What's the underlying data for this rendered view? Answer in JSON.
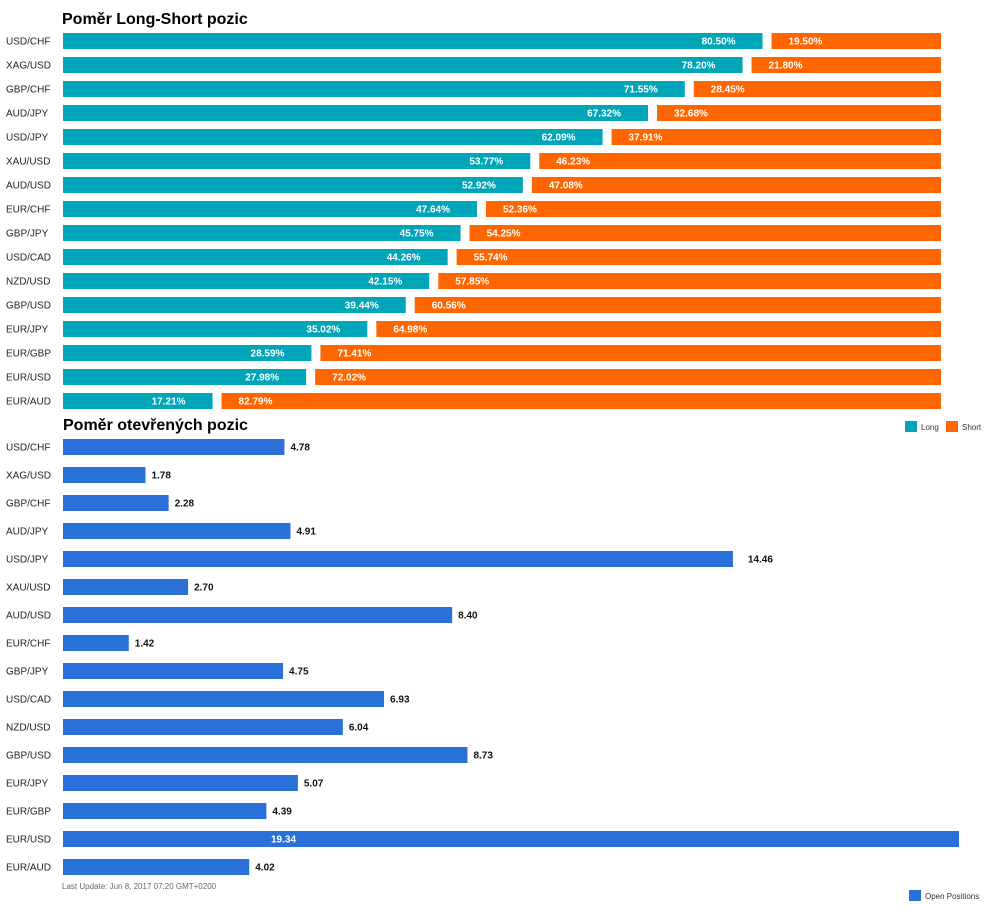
{
  "chart_data": [
    {
      "type": "bar",
      "stacked": true,
      "orientation": "horizontal",
      "title": "Poměr Long-Short pozic",
      "categories": [
        "USD/CHF",
        "XAG/USD",
        "GBP/CHF",
        "AUD/JPY",
        "USD/JPY",
        "XAU/USD",
        "AUD/USD",
        "EUR/CHF",
        "GBP/JPY",
        "USD/CAD",
        "NZD/USD",
        "GBP/USD",
        "EUR/JPY",
        "EUR/GBP",
        "EUR/USD",
        "EUR/AUD"
      ],
      "series": [
        {
          "name": "Long",
          "color": "#00a6b8",
          "values": [
            80.5,
            78.2,
            71.55,
            67.32,
            62.09,
            53.77,
            52.92,
            47.64,
            45.75,
            44.26,
            42.15,
            39.44,
            35.02,
            28.59,
            27.98,
            17.21
          ]
        },
        {
          "name": "Short",
          "color": "#ff6600",
          "values": [
            19.5,
            21.8,
            28.45,
            32.68,
            37.91,
            46.23,
            47.08,
            52.36,
            54.25,
            55.74,
            57.85,
            60.56,
            64.98,
            71.41,
            72.02,
            82.79
          ]
        }
      ],
      "labels": {
        "Long": [
          "80.50%",
          "78.20%",
          "71.55%",
          "67.32%",
          "62.09%",
          "53.77%",
          "52.92%",
          "47.64%",
          "45.75%",
          "44.26%",
          "42.15%",
          "39.44%",
          "35.02%",
          "28.59%",
          "27.98%",
          "17.21%"
        ],
        "Short": [
          "19.50%",
          "21.80%",
          "28.45%",
          "32.68%",
          "37.91%",
          "46.23%",
          "47.08%",
          "52.36%",
          "54.25%",
          "55.74%",
          "57.85%",
          "60.56%",
          "64.98%",
          "71.41%",
          "72.02%",
          "82.79%"
        ]
      },
      "xlim": [
        0,
        100
      ],
      "grid": false,
      "legend": "bottom-right"
    },
    {
      "type": "bar",
      "orientation": "horizontal",
      "title": "Poměr otevřených pozic",
      "categories": [
        "USD/CHF",
        "XAG/USD",
        "GBP/CHF",
        "AUD/JPY",
        "USD/JPY",
        "XAU/USD",
        "AUD/USD",
        "EUR/CHF",
        "GBP/JPY",
        "USD/CAD",
        "NZD/USD",
        "GBP/USD",
        "EUR/JPY",
        "EUR/GBP",
        "EUR/USD",
        "EUR/AUD"
      ],
      "series": [
        {
          "name": "Open Positions",
          "color": "#2b6fd9",
          "values": [
            4.78,
            1.78,
            2.28,
            4.91,
            14.46,
            2.7,
            8.4,
            1.42,
            4.75,
            6.93,
            6.04,
            8.73,
            5.07,
            4.39,
            19.34,
            4.02
          ]
        }
      ],
      "labels": [
        "4.78",
        "1.78",
        "2.28",
        "4.91",
        "14.46",
        "2.70",
        "8.40",
        "1.42",
        "4.75",
        "6.93",
        "6.04",
        "8.73",
        "5.07",
        "4.39",
        "19.34",
        "4.02"
      ],
      "xlim": [
        0,
        19.34
      ],
      "grid": false,
      "legend": "bottom-right"
    }
  ],
  "footer": {
    "last_update": "Last Update: Jun 8, 2017 07:20 GMT+0200"
  }
}
